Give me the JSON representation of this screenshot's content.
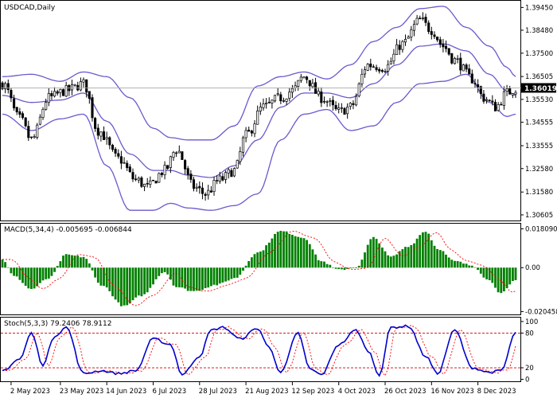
{
  "chart_data": [
    {
      "type": "candlestick",
      "name": "price-panel",
      "title": "USDCAD,Daily",
      "ylim": [
        1.304,
        1.397
      ],
      "yticks": [
        1.3945,
        1.3848,
        1.375,
        1.36505,
        1.3553,
        1.34555,
        1.33555,
        1.3258,
        1.3158,
        1.30605
      ],
      "ytick_labels": [
        "1.39450",
        "1.38480",
        "1.37500",
        "1.36505",
        "1.35530",
        "1.34555",
        "1.33555",
        "1.32580",
        "1.31580",
        "1.30605"
      ],
      "current_price": 1.36019,
      "current_price_label": "1.36019",
      "anchors": [
        {
          "t": 0,
          "v": 1.362
        },
        {
          "t": 6,
          "v": 1.347
        },
        {
          "t": 10,
          "v": 1.338
        },
        {
          "t": 16,
          "v": 1.356
        },
        {
          "t": 22,
          "v": 1.359
        },
        {
          "t": 28,
          "v": 1.362
        },
        {
          "t": 33,
          "v": 1.342
        },
        {
          "t": 40,
          "v": 1.33
        },
        {
          "t": 46,
          "v": 1.321
        },
        {
          "t": 50,
          "v": 1.318
        },
        {
          "t": 56,
          "v": 1.325
        },
        {
          "t": 60,
          "v": 1.334
        },
        {
          "t": 66,
          "v": 1.318
        },
        {
          "t": 70,
          "v": 1.315
        },
        {
          "t": 75,
          "v": 1.321
        },
        {
          "t": 80,
          "v": 1.325
        },
        {
          "t": 84,
          "v": 1.34
        },
        {
          "t": 90,
          "v": 1.352
        },
        {
          "t": 96,
          "v": 1.356
        },
        {
          "t": 100,
          "v": 1.359
        },
        {
          "t": 104,
          "v": 1.365
        },
        {
          "t": 110,
          "v": 1.356
        },
        {
          "t": 116,
          "v": 1.35
        },
        {
          "t": 120,
          "v": 1.352
        },
        {
          "t": 126,
          "v": 1.37
        },
        {
          "t": 132,
          "v": 1.369
        },
        {
          "t": 138,
          "v": 1.379
        },
        {
          "t": 144,
          "v": 1.389
        },
        {
          "t": 148,
          "v": 1.385
        },
        {
          "t": 152,
          "v": 1.378
        },
        {
          "t": 156,
          "v": 1.372
        },
        {
          "t": 162,
          "v": 1.364
        },
        {
          "t": 166,
          "v": 1.356
        },
        {
          "t": 170,
          "v": 1.352
        },
        {
          "t": 174,
          "v": 1.358
        },
        {
          "t": 177,
          "v": 1.36
        }
      ],
      "bollinger_anchors": [
        {
          "t": 0,
          "u": 1.365,
          "m": 1.357,
          "l": 1.349
        },
        {
          "t": 10,
          "u": 1.366,
          "m": 1.354,
          "l": 1.342
        },
        {
          "t": 20,
          "u": 1.363,
          "m": 1.355,
          "l": 1.347
        },
        {
          "t": 28,
          "u": 1.367,
          "m": 1.358,
          "l": 1.349
        },
        {
          "t": 36,
          "u": 1.365,
          "m": 1.346,
          "l": 1.327
        },
        {
          "t": 44,
          "u": 1.356,
          "m": 1.332,
          "l": 1.308
        },
        {
          "t": 52,
          "u": 1.343,
          "m": 1.325,
          "l": 1.308
        },
        {
          "t": 58,
          "u": 1.339,
          "m": 1.325,
          "l": 1.311
        },
        {
          "t": 64,
          "u": 1.338,
          "m": 1.323,
          "l": 1.309
        },
        {
          "t": 72,
          "u": 1.338,
          "m": 1.322,
          "l": 1.308
        },
        {
          "t": 80,
          "u": 1.344,
          "m": 1.327,
          "l": 1.31
        },
        {
          "t": 88,
          "u": 1.361,
          "m": 1.338,
          "l": 1.315
        },
        {
          "t": 96,
          "u": 1.365,
          "m": 1.352,
          "l": 1.338
        },
        {
          "t": 104,
          "u": 1.367,
          "m": 1.358,
          "l": 1.349
        },
        {
          "t": 112,
          "u": 1.364,
          "m": 1.358,
          "l": 1.351
        },
        {
          "t": 120,
          "u": 1.37,
          "m": 1.356,
          "l": 1.342
        },
        {
          "t": 128,
          "u": 1.38,
          "m": 1.362,
          "l": 1.344
        },
        {
          "t": 136,
          "u": 1.386,
          "m": 1.37,
          "l": 1.354
        },
        {
          "t": 144,
          "u": 1.394,
          "m": 1.378,
          "l": 1.362
        },
        {
          "t": 152,
          "u": 1.395,
          "m": 1.379,
          "l": 1.363
        },
        {
          "t": 160,
          "u": 1.386,
          "m": 1.376,
          "l": 1.366
        },
        {
          "t": 168,
          "u": 1.378,
          "m": 1.366,
          "l": 1.354
        },
        {
          "t": 174,
          "u": 1.369,
          "m": 1.359,
          "l": 1.348
        },
        {
          "t": 177,
          "u": 1.365,
          "m": 1.357,
          "l": 1.349
        }
      ]
    },
    {
      "type": "histogram",
      "name": "macd-panel",
      "title": "MACD(5,34,4) -0.005695 -0.006844",
      "ylim": [
        -0.0218,
        0.0205
      ],
      "yticks": [
        0.01809,
        0.0,
        -0.020458
      ],
      "ytick_labels": [
        "0.018090",
        "0.00",
        "-0.020458"
      ],
      "anchors": [
        {
          "t": 0,
          "v": 0.004
        },
        {
          "t": 4,
          "v": -0.004
        },
        {
          "t": 10,
          "v": -0.01
        },
        {
          "t": 16,
          "v": -0.005
        },
        {
          "t": 22,
          "v": 0.006
        },
        {
          "t": 28,
          "v": 0.005
        },
        {
          "t": 34,
          "v": -0.008
        },
        {
          "t": 42,
          "v": -0.018
        },
        {
          "t": 48,
          "v": -0.013
        },
        {
          "t": 56,
          "v": -0.002
        },
        {
          "t": 60,
          "v": -0.009
        },
        {
          "t": 66,
          "v": -0.011
        },
        {
          "t": 74,
          "v": -0.008
        },
        {
          "t": 80,
          "v": -0.005
        },
        {
          "t": 88,
          "v": 0.007
        },
        {
          "t": 96,
          "v": 0.017
        },
        {
          "t": 104,
          "v": 0.014
        },
        {
          "t": 110,
          "v": 0.003
        },
        {
          "t": 116,
          "v": -0.001
        },
        {
          "t": 122,
          "v": 0.0
        },
        {
          "t": 128,
          "v": 0.014
        },
        {
          "t": 134,
          "v": 0.005
        },
        {
          "t": 140,
          "v": 0.01
        },
        {
          "t": 146,
          "v": 0.017
        },
        {
          "t": 150,
          "v": 0.009
        },
        {
          "t": 156,
          "v": 0.003
        },
        {
          "t": 162,
          "v": 0.001
        },
        {
          "t": 168,
          "v": -0.006
        },
        {
          "t": 172,
          "v": -0.012
        },
        {
          "t": 177,
          "v": -0.006
        }
      ],
      "signal_lag": 3
    },
    {
      "type": "line",
      "name": "stoch-panel",
      "title": "Stoch(5,3,3) 79.2406 78.9112",
      "ylim": [
        -2,
        104
      ],
      "yticks": [
        100,
        80,
        20,
        0
      ],
      "ytick_labels": [
        "100",
        "80",
        "20",
        "0"
      ],
      "levels": [
        80,
        20
      ],
      "anchors": [
        {
          "t": 0,
          "v": 15
        },
        {
          "t": 6,
          "v": 35
        },
        {
          "t": 10,
          "v": 80
        },
        {
          "t": 14,
          "v": 25
        },
        {
          "t": 18,
          "v": 75
        },
        {
          "t": 22,
          "v": 90
        },
        {
          "t": 28,
          "v": 10
        },
        {
          "t": 34,
          "v": 15
        },
        {
          "t": 40,
          "v": 10
        },
        {
          "t": 46,
          "v": 15
        },
        {
          "t": 52,
          "v": 70
        },
        {
          "t": 58,
          "v": 60
        },
        {
          "t": 62,
          "v": 8
        },
        {
          "t": 68,
          "v": 40
        },
        {
          "t": 72,
          "v": 85
        },
        {
          "t": 76,
          "v": 90
        },
        {
          "t": 82,
          "v": 70
        },
        {
          "t": 88,
          "v": 88
        },
        {
          "t": 92,
          "v": 55
        },
        {
          "t": 96,
          "v": 12
        },
        {
          "t": 102,
          "v": 80
        },
        {
          "t": 106,
          "v": 18
        },
        {
          "t": 110,
          "v": 8
        },
        {
          "t": 116,
          "v": 60
        },
        {
          "t": 122,
          "v": 85
        },
        {
          "t": 126,
          "v": 50
        },
        {
          "t": 130,
          "v": 8
        },
        {
          "t": 134,
          "v": 90
        },
        {
          "t": 140,
          "v": 92
        },
        {
          "t": 146,
          "v": 40
        },
        {
          "t": 150,
          "v": 10
        },
        {
          "t": 156,
          "v": 85
        },
        {
          "t": 162,
          "v": 20
        },
        {
          "t": 168,
          "v": 12
        },
        {
          "t": 172,
          "v": 15
        },
        {
          "t": 177,
          "v": 80
        }
      ],
      "signal_lag": 2
    }
  ],
  "x_axis": {
    "n_bars": 178,
    "date_labels": [
      {
        "i": 3,
        "label": "2 May 2023"
      },
      {
        "i": 20,
        "label": "23 May 2023"
      },
      {
        "i": 36,
        "label": "14 Jun 2023"
      },
      {
        "i": 52,
        "label": "6 Jul 2023"
      },
      {
        "i": 68,
        "label": "28 Jul 2023"
      },
      {
        "i": 84,
        "label": "21 Aug 2023"
      },
      {
        "i": 100,
        "label": "12 Sep 2023"
      },
      {
        "i": 116,
        "label": "4 Oct 2023"
      },
      {
        "i": 132,
        "label": "26 Oct 2023"
      },
      {
        "i": 148,
        "label": "16 Nov 2023"
      },
      {
        "i": 164,
        "label": "8 Dec 2023"
      }
    ]
  },
  "colors": {
    "candle": "#000000",
    "bollinger": "#6a5acd",
    "histogram": "#008000",
    "macd_signal": "#ff0000",
    "stoch_main": "#0000cd",
    "stoch_signal": "#ff0000",
    "level_line": "#cc0000",
    "price_line": "#aaaaaa"
  }
}
